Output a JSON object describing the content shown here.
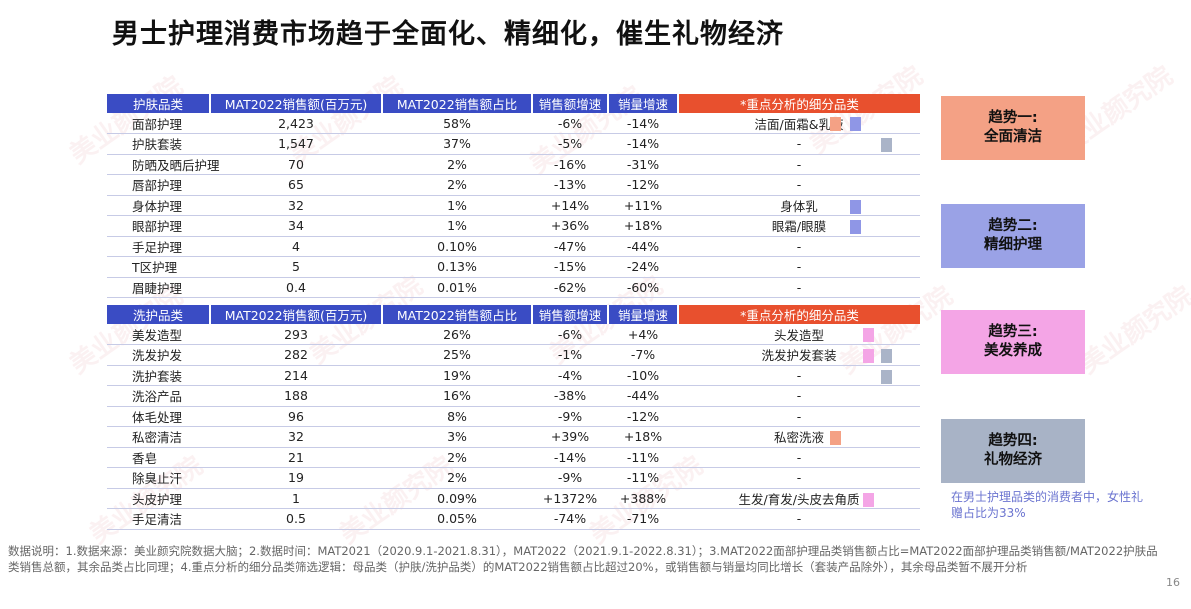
{
  "title": "男士护理消费市场趋于全面化、精细化，催生礼物经济",
  "watermark_text": "美业颜究院",
  "colors": {
    "header_blue": "#3a4cc4",
    "header_orange": "#e8502e",
    "salmon": "#f4a185",
    "blue": "#8f96e6",
    "pink": "#f4a5e6",
    "gray": "#aab4c8"
  },
  "skin_table": {
    "headers": [
      "护肤品类",
      "MAT2022销售额(百万元)",
      "MAT2022销售额占比",
      "销售额增速",
      "销量增速",
      "*重点分析的细分品类"
    ],
    "rows": [
      {
        "cat": "面部护理",
        "sales": "2,423",
        "share": "58%",
        "sg": "-6%",
        "vg": "-14%",
        "focus": "洁面/面霜&乳液",
        "marks": [
          "salmon",
          "blue"
        ]
      },
      {
        "cat": "护肤套装",
        "sales": "1,547",
        "share": "37%",
        "sg": "-5%",
        "vg": "-14%",
        "focus": "-",
        "marks": [
          "gray"
        ]
      },
      {
        "cat": "防晒及晒后护理",
        "sales": "70",
        "share": "2%",
        "sg": "-16%",
        "vg": "-31%",
        "focus": "-",
        "marks": []
      },
      {
        "cat": "唇部护理",
        "sales": "65",
        "share": "2%",
        "sg": "-13%",
        "vg": "-12%",
        "focus": "-",
        "marks": []
      },
      {
        "cat": "身体护理",
        "sales": "32",
        "share": "1%",
        "sg": "+14%",
        "vg": "+11%",
        "focus": "身体乳",
        "marks": [
          "blue"
        ]
      },
      {
        "cat": "眼部护理",
        "sales": "34",
        "share": "1%",
        "sg": "+36%",
        "vg": "+18%",
        "focus": "眼霜/眼膜",
        "marks": [
          "blue"
        ]
      },
      {
        "cat": "手足护理",
        "sales": "4",
        "share": "0.10%",
        "sg": "-47%",
        "vg": "-44%",
        "focus": "-",
        "marks": []
      },
      {
        "cat": "T区护理",
        "sales": "5",
        "share": "0.13%",
        "sg": "-15%",
        "vg": "-24%",
        "focus": "-",
        "marks": []
      },
      {
        "cat": "眉睫护理",
        "sales": "0.4",
        "share": "0.01%",
        "sg": "-62%",
        "vg": "-60%",
        "focus": "-",
        "marks": []
      }
    ]
  },
  "hair_table": {
    "headers": [
      "洗护品类",
      "MAT2022销售额(百万元)",
      "MAT2022销售额占比",
      "销售额增速",
      "销量增速",
      "*重点分析的细分品类"
    ],
    "rows": [
      {
        "cat": "美发造型",
        "sales": "293",
        "share": "26%",
        "sg": "-6%",
        "vg": "+4%",
        "focus": "头发造型",
        "marks": [
          "pink"
        ]
      },
      {
        "cat": "洗发护发",
        "sales": "282",
        "share": "25%",
        "sg": "-1%",
        "vg": "-7%",
        "focus": "洗发护发套装",
        "marks": [
          "pink",
          "gray"
        ]
      },
      {
        "cat": "洗护套装",
        "sales": "214",
        "share": "19%",
        "sg": "-4%",
        "vg": "-10%",
        "focus": "-",
        "marks": [
          "gray"
        ]
      },
      {
        "cat": "洗浴产品",
        "sales": "188",
        "share": "16%",
        "sg": "-38%",
        "vg": "-44%",
        "focus": "-",
        "marks": []
      },
      {
        "cat": "体毛处理",
        "sales": "96",
        "share": "8%",
        "sg": "-9%",
        "vg": "-12%",
        "focus": "-",
        "marks": []
      },
      {
        "cat": "私密清洁",
        "sales": "32",
        "share": "3%",
        "sg": "+39%",
        "vg": "+18%",
        "focus": "私密洗液",
        "marks": [
          "salmon"
        ]
      },
      {
        "cat": "香皂",
        "sales": "21",
        "share": "2%",
        "sg": "-14%",
        "vg": "-11%",
        "focus": "-",
        "marks": []
      },
      {
        "cat": "除臭止汗",
        "sales": "19",
        "share": "2%",
        "sg": "-9%",
        "vg": "-11%",
        "focus": "-",
        "marks": []
      },
      {
        "cat": "头皮护理",
        "sales": "1",
        "share": "0.09%",
        "sg": "+1372%",
        "vg": "+388%",
        "focus": "生发/育发/头皮去角质",
        "marks": [
          "pink"
        ]
      },
      {
        "cat": "手足清洁",
        "sales": "0.5",
        "share": "0.05%",
        "sg": "-74%",
        "vg": "-71%",
        "focus": "-",
        "marks": []
      }
    ]
  },
  "trends": [
    {
      "label": "趋势一:\n全面清洁"
    },
    {
      "label": "趋势二:\n精细护理"
    },
    {
      "label": "趋势三:\n美发养成"
    },
    {
      "label": "趋势四:\n礼物经济"
    }
  ],
  "trend_note": "在男士护理品类的消费者中，女性礼赠占比为33%",
  "footnote": "数据说明：1.数据来源：美业颜究院数据大脑；2.数据时间：MAT2021（2020.9.1-2021.8.31），MAT2022（2021.9.1-2022.8.31）；3.MAT2022面部护理品类销售额占比=MAT2022面部护理品类销售额/MAT2022护肤品类销售总额，其余品类占比同理；4.重点分析的细分品类筛选逻辑：母品类（护肤/洗护品类）的MAT2022销售额占比超过20%，或销售额与销量均同比增长（套装产品除外），其余母品类暂不展开分析",
  "page_number": "16"
}
